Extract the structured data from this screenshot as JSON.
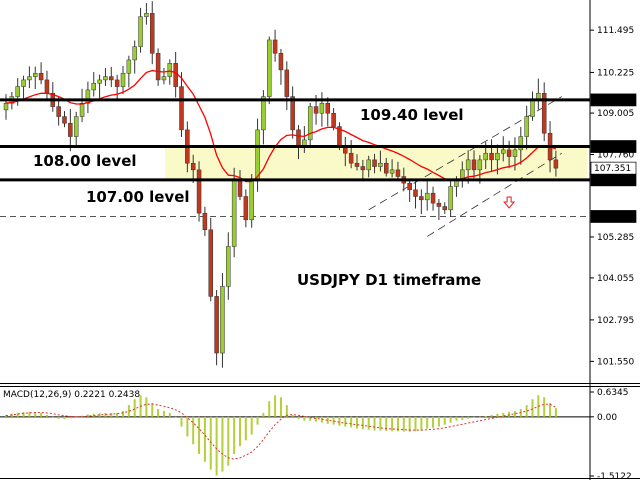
{
  "chart_data": [
    {
      "type": "candlestick",
      "title": "USDJPY D1 timeframe",
      "symbol": "USDJPY",
      "timeframe": "D1",
      "ylim": [
        100.9,
        112.4
      ],
      "y_ticks": [
        "111.495",
        "110.225",
        "109.005",
        "107.760",
        "105.285",
        "104.055",
        "102.795",
        "101.550"
      ],
      "colors": {
        "bull": "#9acd32",
        "bear": "#c0391e",
        "ma": "#ff0000",
        "zone": "#fafac8",
        "level": "#000000"
      },
      "levels": [
        {
          "value": 109.4,
          "tag": "109.400",
          "label": "109.40 level"
        },
        {
          "value": 108.0,
          "tag": "108.000",
          "label": "108.00 level"
        },
        {
          "value": 107.0,
          "tag": "107.000",
          "label": "107.00 level"
        }
      ],
      "dashed_level": {
        "value": 105.9,
        "tag": "105.900"
      },
      "current_price": {
        "value": 107.351,
        "tag": "107.351"
      },
      "zone": {
        "from": 107.0,
        "to": 108.0
      },
      "closes": [
        109.3,
        109.5,
        109.8,
        110.0,
        110.1,
        110.2,
        110.0,
        109.6,
        109.2,
        108.9,
        108.7,
        108.3,
        108.9,
        109.3,
        109.7,
        109.9,
        110.0,
        110.1,
        110.0,
        109.8,
        110.2,
        110.6,
        111.0,
        111.9,
        112.0,
        110.8,
        110.0,
        110.1,
        110.5,
        109.8,
        108.5,
        107.5,
        107.3,
        106.0,
        105.5,
        103.5,
        101.8,
        103.8,
        105.0,
        107.0,
        106.5,
        105.8,
        107.0,
        108.5,
        109.5,
        111.2,
        110.8,
        110.3,
        109.5,
        108.5,
        108.0,
        108.2,
        109.2,
        109.0,
        109.3,
        109.0,
        108.6,
        108.0,
        107.8,
        107.5,
        107.4,
        107.3,
        107.6,
        107.4,
        107.5,
        107.2,
        107.3,
        107.1,
        106.9,
        106.7,
        106.5,
        106.4,
        106.6,
        106.3,
        106.2,
        106.1,
        106.8,
        107.0,
        107.3,
        107.6,
        107.3,
        107.6,
        107.8,
        107.6,
        107.8,
        107.9,
        107.7,
        107.9,
        108.3,
        108.9,
        109.4,
        109.6,
        108.4,
        107.6,
        107.351
      ],
      "trendlines": [
        {
          "from": [
            62,
            106.1
          ],
          "to": [
            95,
            109.5
          ],
          "style": "dashed"
        },
        {
          "from": [
            72,
            105.3
          ],
          "to": [
            95,
            107.8
          ],
          "style": "dashed"
        }
      ],
      "annotations": [
        {
          "text": "108.00 level",
          "level": 108.0
        },
        {
          "text": "109.40 level",
          "level": 109.4
        },
        {
          "text": "107.00 level",
          "level": 107.0
        }
      ],
      "arrow": {
        "direction": "down",
        "bar": 86
      }
    },
    {
      "type": "bar",
      "title": "MACD(12,26,9) 0.2221 0.2438",
      "ylim": [
        -1.5122,
        0.6345
      ],
      "y_ticks": [
        "0.6345",
        "0.00",
        "-1.5122"
      ],
      "signal_style": "dotted",
      "histogram": [
        0.05,
        0.08,
        0.1,
        0.12,
        0.13,
        0.12,
        0.1,
        0.05,
        -0.02,
        -0.05,
        -0.06,
        -0.04,
        0.0,
        0.03,
        0.06,
        0.08,
        0.09,
        0.1,
        0.1,
        0.1,
        0.15,
        0.3,
        0.45,
        0.55,
        0.5,
        0.35,
        0.2,
        0.15,
        0.1,
        0.0,
        -0.25,
        -0.5,
        -0.7,
        -0.95,
        -1.15,
        -1.35,
        -1.5,
        -1.4,
        -1.25,
        -0.95,
        -0.75,
        -0.6,
        -0.45,
        -0.2,
        0.1,
        0.4,
        0.55,
        0.5,
        0.3,
        0.05,
        -0.05,
        -0.1,
        -0.1,
        -0.12,
        -0.15,
        -0.18,
        -0.2,
        -0.23,
        -0.25,
        -0.27,
        -0.3,
        -0.32,
        -0.33,
        -0.35,
        -0.35,
        -0.36,
        -0.37,
        -0.37,
        -0.38,
        -0.38,
        -0.37,
        -0.35,
        -0.3,
        -0.28,
        -0.25,
        -0.2,
        -0.15,
        -0.1,
        -0.08,
        -0.05,
        -0.02,
        0.0,
        0.02,
        0.05,
        0.08,
        0.1,
        0.13,
        0.15,
        0.2,
        0.3,
        0.45,
        0.55,
        0.5,
        0.35,
        0.2221
      ],
      "signal": [
        0.03,
        0.05,
        0.07,
        0.09,
        0.1,
        0.11,
        0.11,
        0.1,
        0.08,
        0.05,
        0.03,
        0.01,
        0.0,
        0.0,
        0.02,
        0.03,
        0.05,
        0.06,
        0.07,
        0.08,
        0.1,
        0.14,
        0.2,
        0.27,
        0.32,
        0.33,
        0.3,
        0.27,
        0.23,
        0.18,
        0.1,
        -0.02,
        -0.15,
        -0.3,
        -0.47,
        -0.65,
        -0.82,
        -0.95,
        -1.05,
        -1.08,
        -1.05,
        -0.98,
        -0.9,
        -0.76,
        -0.58,
        -0.38,
        -0.2,
        -0.06,
        0.04,
        0.06,
        0.04,
        0.01,
        -0.02,
        -0.04,
        -0.06,
        -0.09,
        -0.11,
        -0.14,
        -0.16,
        -0.18,
        -0.2,
        -0.22,
        -0.24,
        -0.26,
        -0.28,
        -0.3,
        -0.31,
        -0.32,
        -0.33,
        -0.34,
        -0.34,
        -0.34,
        -0.33,
        -0.32,
        -0.3,
        -0.28,
        -0.25,
        -0.22,
        -0.19,
        -0.16,
        -0.13,
        -0.1,
        -0.07,
        -0.04,
        -0.01,
        0.02,
        0.05,
        0.08,
        0.11,
        0.15,
        0.2,
        0.27,
        0.32,
        0.32,
        0.2438
      ]
    }
  ]
}
